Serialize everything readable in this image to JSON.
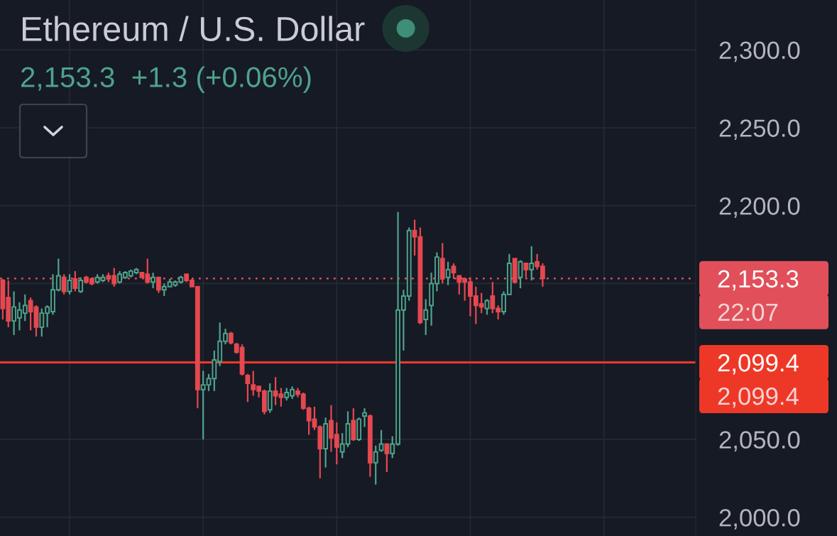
{
  "chart_data": {
    "type": "candlestick",
    "title": "Ethereum / U.S. Dollar",
    "subtitle": "2,153.3  +1.3 (+0.06%)",
    "categories": [
      null,
      null,
      null,
      null,
      null,
      null,
      null,
      null,
      null,
      null,
      null,
      null,
      null,
      null,
      null,
      null,
      null,
      null,
      null,
      null,
      null,
      null,
      null,
      null,
      null,
      null,
      null,
      null,
      null,
      null,
      null,
      null,
      null,
      null,
      null,
      null,
      null,
      null,
      null,
      null,
      null,
      null,
      null,
      null,
      null,
      null,
      null,
      null,
      null,
      null,
      null,
      null,
      null,
      null,
      null,
      null,
      null,
      null,
      null,
      null,
      null,
      null,
      null,
      null,
      null,
      null,
      null,
      null,
      null,
      null,
      null,
      null,
      null,
      null,
      null,
      null,
      null,
      null,
      null,
      null,
      null,
      null,
      null,
      null,
      null,
      null,
      null,
      null,
      null,
      null,
      null,
      null,
      null,
      null,
      null,
      null,
      null,
      null,
      null,
      null,
      null,
      null,
      null,
      null,
      null,
      null,
      null,
      null,
      null,
      null,
      null,
      null,
      null,
      null,
      null,
      null,
      null,
      null,
      null,
      null,
      null,
      null,
      null,
      null,
      null
    ],
    "ohlc": [
      [
        2152,
        2153,
        2127,
        2134
      ],
      [
        2141,
        2152,
        2122,
        2126
      ],
      [
        2126,
        2145,
        2117,
        2135
      ],
      [
        2128,
        2138,
        2120,
        2133
      ],
      [
        2131,
        2143,
        2126,
        2136
      ],
      [
        2139,
        2141,
        2120,
        2132
      ],
      [
        2135,
        2136,
        2116,
        2122
      ],
      [
        2122,
        2134,
        2116,
        2131
      ],
      [
        2131,
        2136,
        2122,
        2135
      ],
      [
        2132,
        2156,
        2130,
        2146
      ],
      [
        2146,
        2166,
        2145,
        2155
      ],
      [
        2154,
        2156,
        2143,
        2145
      ],
      [
        2145,
        2156,
        2143,
        2152
      ],
      [
        2153,
        2158,
        2145,
        2147
      ],
      [
        2145,
        2154,
        2144,
        2152
      ],
      [
        2154,
        2155,
        2150,
        2151
      ],
      [
        2153,
        2154,
        2149,
        2150
      ],
      [
        2151,
        2156,
        2150,
        2154
      ],
      [
        2152,
        2156,
        2151,
        2154
      ],
      [
        2155,
        2157,
        2151,
        2153
      ],
      [
        2155,
        2160,
        2148,
        2150
      ],
      [
        2151,
        2158,
        2150,
        2156
      ],
      [
        2154,
        2158,
        2153,
        2157
      ],
      [
        2155,
        2159,
        2154,
        2158
      ],
      [
        2157,
        2160,
        2156,
        2159
      ],
      [
        2157,
        2157,
        2154,
        2154
      ],
      [
        2156,
        2166,
        2150,
        2151
      ],
      [
        2151,
        2157,
        2147,
        2154
      ],
      [
        2154,
        2154,
        2144,
        2146
      ],
      [
        2146,
        2150,
        2142,
        2148
      ],
      [
        2148,
        2153,
        2148,
        2151
      ],
      [
        2149,
        2152,
        2148,
        2151
      ],
      [
        2151,
        2155,
        2150,
        2154
      ],
      [
        2156,
        2156,
        2151,
        2152
      ],
      [
        2152,
        2153,
        2148,
        2148
      ],
      [
        2148,
        2148,
        2070,
        2082
      ],
      [
        2082,
        2094,
        2050,
        2085
      ],
      [
        2085,
        2092,
        2081,
        2089
      ],
      [
        2089,
        2107,
        2081,
        2101
      ],
      [
        2100,
        2125,
        2097,
        2113
      ],
      [
        2113,
        2121,
        2111,
        2118
      ],
      [
        2118,
        2119,
        2111,
        2112
      ],
      [
        2111,
        2112,
        2105,
        2106
      ],
      [
        2109,
        2111,
        2091,
        2092
      ],
      [
        2091,
        2092,
        2074,
        2086
      ],
      [
        2085,
        2094,
        2078,
        2082
      ],
      [
        2084,
        2084,
        2077,
        2081
      ],
      [
        2081,
        2082,
        2066,
        2068
      ],
      [
        2069,
        2086,
        2067,
        2081
      ],
      [
        2081,
        2090,
        2072,
        2078
      ],
      [
        2079,
        2083,
        2071,
        2077
      ],
      [
        2077,
        2083,
        2075,
        2080
      ],
      [
        2078,
        2084,
        2076,
        2082
      ],
      [
        2081,
        2083,
        2077,
        2079
      ],
      [
        2079,
        2080,
        2069,
        2070
      ],
      [
        2070,
        2071,
        2053,
        2062
      ],
      [
        2063,
        2071,
        2056,
        2058
      ],
      [
        2058,
        2059,
        2025,
        2044
      ],
      [
        2044,
        2064,
        2032,
        2060
      ],
      [
        2062,
        2072,
        2042,
        2051
      ],
      [
        2053,
        2061,
        2034,
        2045
      ],
      [
        2042,
        2054,
        2038,
        2047
      ],
      [
        2047,
        2068,
        2045,
        2060
      ],
      [
        2062,
        2070,
        2049,
        2050
      ],
      [
        2050,
        2064,
        2049,
        2063
      ],
      [
        2065,
        2070,
        2058,
        2067
      ],
      [
        2065,
        2066,
        2026,
        2035
      ],
      [
        2035,
        2046,
        2021,
        2042
      ],
      [
        2043,
        2056,
        2042,
        2047
      ],
      [
        2047,
        2047,
        2029,
        2041
      ],
      [
        2041,
        2052,
        2038,
        2047
      ],
      [
        2047,
        2196,
        2046,
        2133
      ],
      [
        2133,
        2146,
        2107,
        2142
      ],
      [
        2142,
        2186,
        2139,
        2184
      ],
      [
        2184,
        2191,
        2168,
        2180
      ],
      [
        2180,
        2186,
        2124,
        2125
      ],
      [
        2127,
        2140,
        2117,
        2133
      ],
      [
        2136,
        2157,
        2123,
        2150
      ],
      [
        2150,
        2170,
        2145,
        2167
      ],
      [
        2166,
        2176,
        2150,
        2153
      ],
      [
        2154,
        2164,
        2149,
        2159
      ],
      [
        2161,
        2163,
        2153,
        2157
      ],
      [
        2155,
        2155,
        2143,
        2151
      ],
      [
        2153,
        2154,
        2139,
        2151
      ],
      [
        2151,
        2154,
        2129,
        2142
      ],
      [
        2142,
        2148,
        2124,
        2136
      ],
      [
        2137,
        2144,
        2131,
        2135
      ],
      [
        2134,
        2140,
        2130,
        2139
      ],
      [
        2142,
        2151,
        2131,
        2134
      ],
      [
        2134,
        2136,
        2127,
        2132
      ],
      [
        2132,
        2145,
        2130,
        2143
      ],
      [
        2143,
        2169,
        2143,
        2163
      ],
      [
        2166,
        2166,
        2150,
        2151
      ],
      [
        2154,
        2165,
        2147,
        2164
      ],
      [
        2163,
        2163,
        2154,
        2159
      ],
      [
        2159,
        2174,
        2152,
        2163
      ],
      [
        2164,
        2169,
        2159,
        2161
      ],
      [
        2161,
        2163,
        2148,
        2153.3
      ],
      null,
      null,
      null,
      null,
      null,
      null,
      null,
      null,
      null,
      null,
      null,
      null,
      null,
      null,
      null,
      null,
      null,
      null,
      null,
      null,
      null,
      null,
      null,
      null,
      null,
      null,
      null
    ],
    "colors": [
      "#e5484f",
      "#e5484f",
      "#4ea38b",
      "#4ea38b",
      "#4ea38b",
      "#e5484f",
      "#e5484f",
      "#4ea38b",
      "#4ea38b",
      "#4ea38b",
      "#4ea38b",
      "#e5484f",
      "#4ea38b",
      "#e5484f",
      "#4ea38b",
      "#e5484f",
      "#e5484f",
      "#4ea38b",
      "#4ea38b",
      "#e5484f",
      "#e5484f",
      "#4ea38b",
      "#4ea38b",
      "#4ea38b",
      "#4ea38b",
      "#e5484f",
      "#e5484f",
      "#4ea38b",
      "#e5484f",
      "#4ea38b",
      "#4ea38b",
      "#4ea38b",
      "#4ea38b",
      "#e5484f",
      "#e5484f",
      "#e5484f",
      "#4ea38b",
      "#4ea38b",
      "#4ea38b",
      "#4ea38b",
      "#4ea38b",
      "#e5484f",
      "#e5484f",
      "#e5484f",
      "#e5484f",
      "#e5484f",
      "#e5484f",
      "#e5484f",
      "#4ea38b",
      "#e5484f",
      "#e5484f",
      "#4ea38b",
      "#4ea38b",
      "#e5484f",
      "#e5484f",
      "#e5484f",
      "#e5484f",
      "#e5484f",
      "#4ea38b",
      "#e5484f",
      "#e5484f",
      "#4ea38b",
      "#4ea38b",
      "#e5484f",
      "#4ea38b",
      "#4ea38b",
      "#e5484f",
      "#4ea38b",
      "#4ea38b",
      "#e5484f",
      "#4ea38b",
      "#4ea38b",
      "#4ea38b",
      "#4ea38b",
      "#e5484f",
      "#e5484f",
      "#4ea38b",
      "#4ea38b",
      "#4ea38b",
      "#e5484f",
      "#4ea38b",
      "#e5484f",
      "#e5484f",
      "#e5484f",
      "#e5484f",
      "#e5484f",
      "#e5484f",
      "#4ea38b",
      "#e5484f",
      "#e5484f",
      "#4ea38b",
      "#4ea38b",
      "#e5484f",
      "#4ea38b",
      "#e5484f",
      "#4ea38b",
      "#e5484f",
      "#e5484f",
      null,
      null,
      null,
      null,
      null,
      null,
      null,
      null,
      null,
      null,
      null,
      null,
      null,
      null,
      null,
      null,
      null,
      null,
      null,
      null,
      null,
      null,
      null,
      null,
      null,
      null,
      null
    ],
    "ylim": [
      1988,
      2332
    ],
    "yticks": [
      {
        "value": 2000,
        "label": "2,000.0"
      },
      {
        "value": 2050,
        "label": "2,050.0"
      },
      {
        "value": 2100,
        "label": null
      },
      {
        "value": 2150,
        "label": null
      },
      {
        "value": 2200,
        "label": "2,200.0"
      },
      {
        "value": 2250,
        "label": "2,250.0"
      },
      {
        "value": 2300,
        "label": "2,300.0"
      }
    ],
    "grid": true,
    "ref_lines": [
      {
        "axis": "y",
        "value": 2153.3,
        "label": "2,153.3",
        "color": "#e1505a",
        "line_style": "dotted"
      },
      {
        "axis": "y",
        "value": 2099.4,
        "label": "2,099.4",
        "color": "#ee3827",
        "line_style": "solid"
      }
    ],
    "annotations": [
      "22:07",
      "2,099.4"
    ]
  }
}
